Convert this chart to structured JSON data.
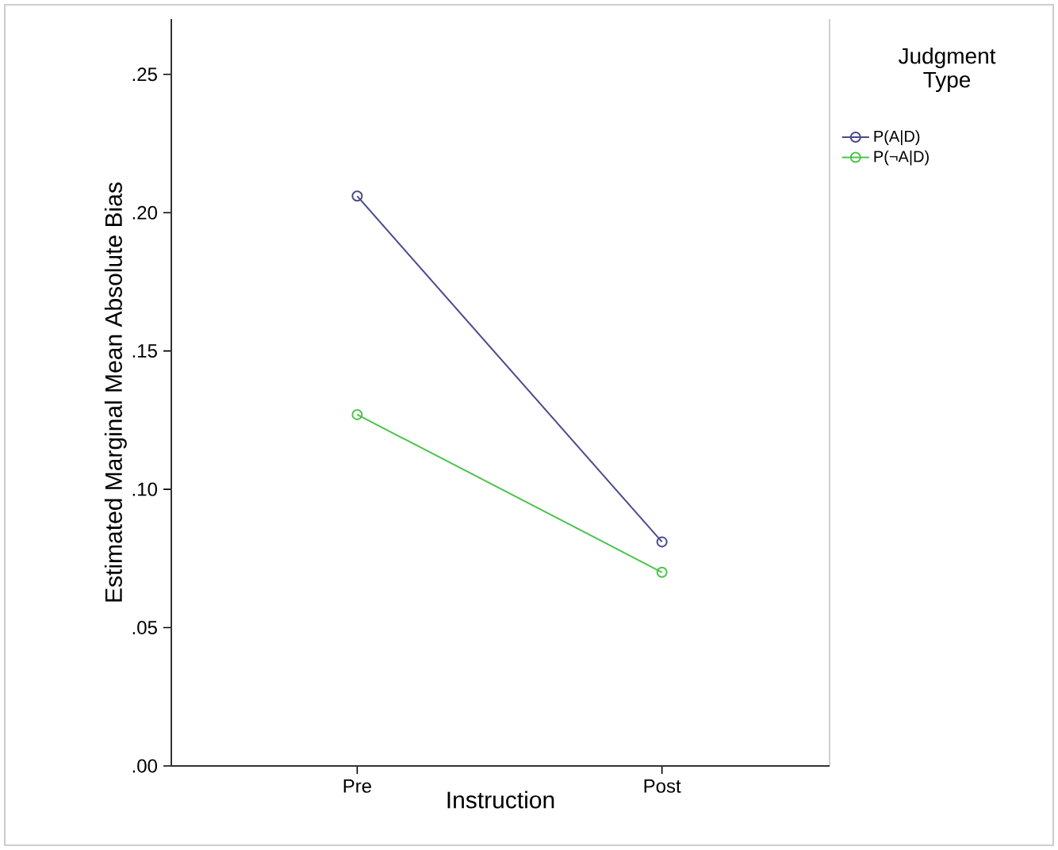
{
  "chart_data": {
    "type": "line",
    "xlabel": "Instruction",
    "ylabel": "Estimated Marginal Mean Absolute Bias",
    "legend_title": "Judgment Type",
    "categories": [
      "Pre",
      "Post"
    ],
    "series": [
      {
        "name": "P(A|D)",
        "color": "#4a4a8c",
        "values": [
          0.206,
          0.081
        ]
      },
      {
        "name": "P(¬A|D)",
        "color": "#4cc34c",
        "values": [
          0.127,
          0.07
        ]
      }
    ],
    "ylim": [
      0,
      0.27
    ],
    "yticks": [
      {
        "value": 0,
        "label": ".00"
      },
      {
        "value": 0.05,
        "label": ".05"
      },
      {
        "value": 0.1,
        "label": ".10"
      },
      {
        "value": 0.15,
        "label": ".15"
      },
      {
        "value": 0.2,
        "label": ".20"
      },
      {
        "value": 0.25,
        "label": ".25"
      }
    ],
    "legend": "right",
    "marker": "circle",
    "line_style": "solid",
    "grid": false
  }
}
